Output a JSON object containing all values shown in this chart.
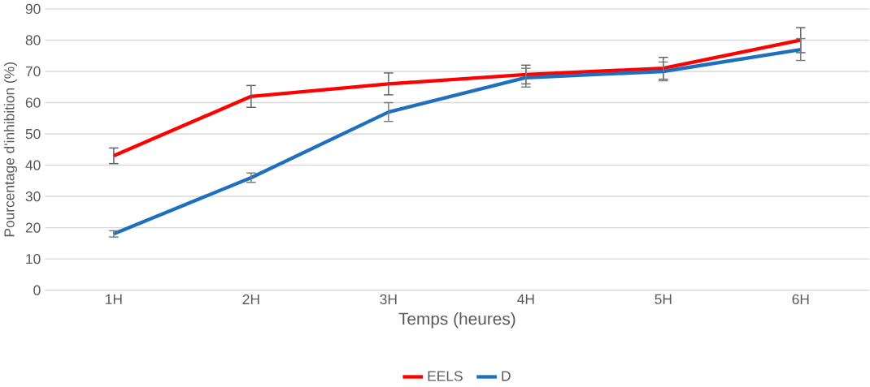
{
  "chart_data": {
    "type": "line",
    "xlabel": "Temps (heures)",
    "ylabel": "Pourcentage d'inhibition (%)",
    "categories": [
      "1H",
      "2H",
      "3H",
      "4H",
      "5H",
      "6H"
    ],
    "series": [
      {
        "name": "EELS",
        "color": "#ff0000",
        "values": [
          43,
          62,
          66,
          69,
          71,
          80
        ],
        "errors": [
          2.5,
          3.5,
          3.5,
          3,
          3.5,
          4
        ]
      },
      {
        "name": "D",
        "color": "#1f6fbf",
        "values": [
          18,
          36,
          57,
          68,
          70,
          77
        ],
        "errors": [
          1,
          1.5,
          3,
          3,
          3,
          3.5
        ]
      }
    ],
    "ylim": [
      0,
      90
    ],
    "yticks": [
      0,
      10,
      20,
      30,
      40,
      50,
      60,
      70,
      80,
      90
    ],
    "grid": "y",
    "legend": "bottom",
    "marker": "none",
    "line_style": "solid"
  }
}
